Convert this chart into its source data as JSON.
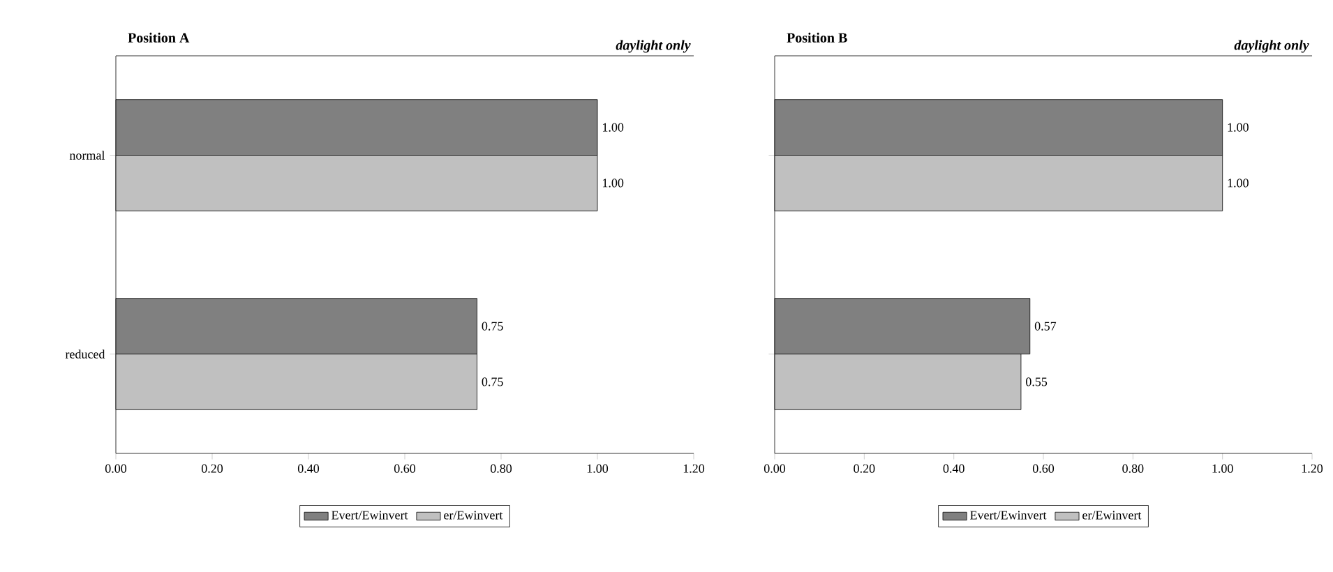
{
  "chart_data": [
    {
      "type": "bar",
      "orientation": "horizontal",
      "title": "Position A",
      "subtitle": "daylight only",
      "categories": [
        "normal",
        "reduced"
      ],
      "series": [
        {
          "name": "Evert/Ewinvert",
          "color": "#808080",
          "values": [
            1.0,
            0.75
          ],
          "value_labels": [
            "1.00",
            "0.75"
          ]
        },
        {
          "name": "er/Ewinvert",
          "color": "#c0c0c0",
          "values": [
            1.0,
            0.75
          ],
          "value_labels": [
            "1.00",
            "0.75"
          ]
        }
      ],
      "xlim": [
        0,
        1.2
      ],
      "xticks": [
        {
          "value": 0,
          "label": "0.00"
        },
        {
          "value": 0.2,
          "label": "0.20"
        },
        {
          "value": 0.4,
          "label": "0.40"
        },
        {
          "value": 0.6,
          "label": "0.60"
        },
        {
          "value": 0.8,
          "label": "0.80"
        },
        {
          "value": 1.0,
          "label": "1.00"
        },
        {
          "value": 1.2,
          "label": "1.20"
        }
      ],
      "legend": "bottom",
      "grid": false
    },
    {
      "type": "bar",
      "orientation": "horizontal",
      "title": "Position B",
      "subtitle": "daylight only",
      "categories": [
        null,
        null
      ],
      "series": [
        {
          "name": "Evert/Ewinvert",
          "color": "#808080",
          "values": [
            1.0,
            0.57
          ],
          "value_labels": [
            "1.00",
            "0.57"
          ]
        },
        {
          "name": "er/Ewinvert",
          "color": "#c0c0c0",
          "values": [
            1.0,
            0.55
          ],
          "value_labels": [
            "1.00",
            "0.55"
          ]
        }
      ],
      "xlim": [
        0,
        1.2
      ],
      "xticks": [
        {
          "value": 0,
          "label": "0.00"
        },
        {
          "value": 0.2,
          "label": "0.20"
        },
        {
          "value": 0.4,
          "label": "0.40"
        },
        {
          "value": 0.6,
          "label": "0.60"
        },
        {
          "value": 0.8,
          "label": "0.80"
        },
        {
          "value": 1.0,
          "label": "1.00"
        },
        {
          "value": 1.2,
          "label": "1.20"
        }
      ],
      "legend": "bottom",
      "grid": false
    }
  ]
}
